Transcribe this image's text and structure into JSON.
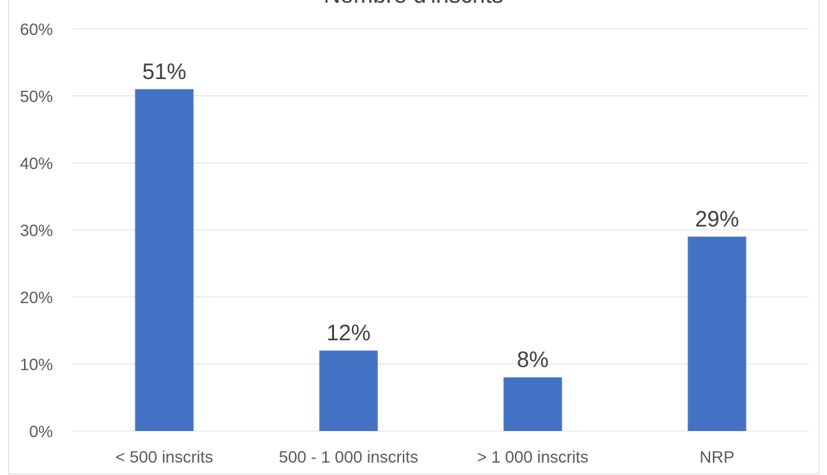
{
  "chart_data": {
    "type": "bar",
    "title": "Nombre d'inscrits",
    "categories": [
      "< 500 inscrits",
      "500 - 1 000 inscrits",
      "> 1 000 inscrits",
      "NRP"
    ],
    "values": [
      51,
      12,
      8,
      29
    ],
    "data_labels": [
      "51%",
      "12%",
      "8%",
      "29%"
    ],
    "ylim": [
      0,
      60
    ],
    "y_ticks": [
      0,
      10,
      20,
      30,
      40,
      50,
      60
    ],
    "y_tick_labels": [
      "0%",
      "10%",
      "20%",
      "30%",
      "40%",
      "50%",
      "60%"
    ],
    "xlabel": "",
    "ylabel": "",
    "grid": true,
    "legend": "none",
    "bar_color": "#4472c4",
    "grid_color": "#d9d9d9"
  }
}
